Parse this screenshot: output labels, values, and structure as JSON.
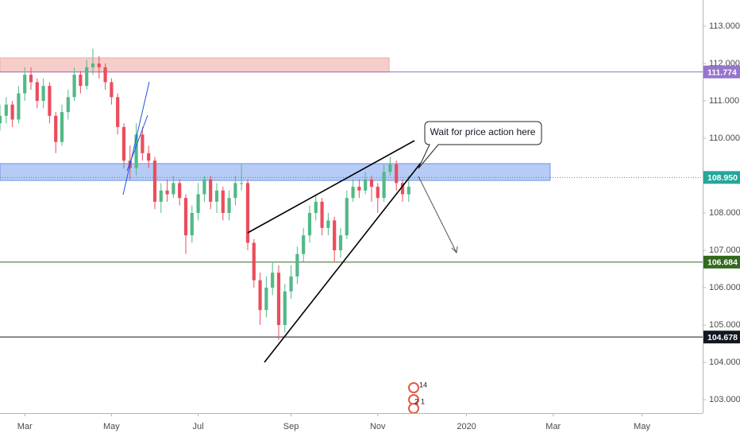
{
  "chart_data": {
    "type": "candlestick",
    "up_color": "#53b987",
    "down_color": "#eb4d5c",
    "x": [
      0,
      3,
      6,
      9,
      12,
      15,
      18,
      21,
      24,
      27,
      30,
      33,
      36,
      39,
      42,
      45,
      48,
      51,
      54,
      57,
      60,
      63,
      66,
      69,
      72,
      75,
      78,
      81,
      84,
      87,
      90,
      93,
      96,
      99,
      102,
      105,
      108,
      111,
      114,
      117,
      120,
      123,
      126,
      129,
      132,
      135,
      138,
      141,
      144,
      147,
      150,
      153,
      156,
      159,
      162,
      165,
      168,
      171,
      174,
      177,
      180,
      183,
      186,
      189,
      192,
      195,
      198
    ],
    "open": [
      110.4,
      110.6,
      110.9,
      110.5,
      111.2,
      111.7,
      111.5,
      111.0,
      111.4,
      110.6,
      109.9,
      110.7,
      111.1,
      111.7,
      111.4,
      111.9,
      112.0,
      111.9,
      111.5,
      111.1,
      110.3,
      109.4,
      109.2,
      110.1,
      109.6,
      109.4,
      108.3,
      108.6,
      108.5,
      108.8,
      108.4,
      107.4,
      108.0,
      108.5,
      108.9,
      108.3,
      108.6,
      108.0,
      108.4,
      108.8,
      108.8,
      107.2,
      106.2,
      105.4,
      106.0,
      106.4,
      105.0,
      105.9,
      106.3,
      106.9,
      107.4,
      108.0,
      108.3,
      107.6,
      107.8,
      107.0,
      107.4,
      108.4,
      108.7,
      108.6,
      108.9,
      108.7,
      108.4,
      109.1,
      109.3,
      108.8,
      108.5
    ],
    "high": [
      110.9,
      111.1,
      111.0,
      111.4,
      111.9,
      111.9,
      111.6,
      111.6,
      111.5,
      110.7,
      110.9,
      111.3,
      111.9,
      111.8,
      112.1,
      112.4,
      112.2,
      112.0,
      111.6,
      111.2,
      110.4,
      109.8,
      110.4,
      110.3,
      109.8,
      109.5,
      108.8,
      108.9,
      109.0,
      108.9,
      108.5,
      108.2,
      108.8,
      109.0,
      109.0,
      108.8,
      108.7,
      108.6,
      109.0,
      109.3,
      108.9,
      107.3,
      106.4,
      106.3,
      106.7,
      106.6,
      106.1,
      106.6,
      107.1,
      107.6,
      108.2,
      108.5,
      108.4,
      108.0,
      107.9,
      107.6,
      108.6,
      108.9,
      108.9,
      109.1,
      109.0,
      108.8,
      109.3,
      109.5,
      109.4,
      108.9,
      109.0
    ],
    "low": [
      110.2,
      110.4,
      110.3,
      110.4,
      111.0,
      111.3,
      110.8,
      110.8,
      110.4,
      109.6,
      109.8,
      110.5,
      111.0,
      111.2,
      111.3,
      111.7,
      111.6,
      111.3,
      110.9,
      110.1,
      109.2,
      108.9,
      109.0,
      109.4,
      109.2,
      108.1,
      108.0,
      108.3,
      108.4,
      108.2,
      106.9,
      107.2,
      107.8,
      108.3,
      108.1,
      108.0,
      107.8,
      107.8,
      108.2,
      108.6,
      107.0,
      106.0,
      105.0,
      105.2,
      105.8,
      104.6,
      104.8,
      105.7,
      106.1,
      106.7,
      107.2,
      107.8,
      107.4,
      107.4,
      106.7,
      106.8,
      107.3,
      108.3,
      108.4,
      108.5,
      108.3,
      108.0,
      108.3,
      109.0,
      108.6,
      108.3,
      108.3
    ],
    "close": [
      110.6,
      110.9,
      110.5,
      111.2,
      111.7,
      111.5,
      111.0,
      111.4,
      110.6,
      109.9,
      110.7,
      111.1,
      111.7,
      111.4,
      111.9,
      112.0,
      111.9,
      111.5,
      111.1,
      110.3,
      109.4,
      109.2,
      110.1,
      109.6,
      109.4,
      108.3,
      108.6,
      108.5,
      108.8,
      108.4,
      107.4,
      108.0,
      108.5,
      108.9,
      108.3,
      108.6,
      108.0,
      108.4,
      108.8,
      108.8,
      107.2,
      106.2,
      105.4,
      106.0,
      106.4,
      105.0,
      105.9,
      106.3,
      106.9,
      107.4,
      108.0,
      108.3,
      107.6,
      107.8,
      107.0,
      107.4,
      108.4,
      108.7,
      108.6,
      108.9,
      108.7,
      108.4,
      109.1,
      109.3,
      108.8,
      108.5,
      108.7
    ],
    "xlim": [
      0,
      340.4
    ],
    "xticks": [
      {
        "value": 12,
        "label": "Mar"
      },
      {
        "value": 54,
        "label": "May"
      },
      {
        "value": 96,
        "label": "Jul"
      },
      {
        "value": 141,
        "label": "Sep"
      },
      {
        "value": 183,
        "label": "Nov"
      },
      {
        "value": 226,
        "label": "2020"
      },
      {
        "value": 268,
        "label": "Mar"
      },
      {
        "value": 311,
        "label": "May"
      }
    ],
    "ylim": [
      102.64,
      113.7
    ],
    "yticks": [
      {
        "value": 103,
        "label": "103.000"
      },
      {
        "value": 104,
        "label": "104.000"
      },
      {
        "value": 105,
        "label": "105.000"
      },
      {
        "value": 106,
        "label": "106.000"
      },
      {
        "value": 107,
        "label": "107.000"
      },
      {
        "value": 108,
        "label": "108.000"
      },
      {
        "value": 109,
        "label": "109.000"
      },
      {
        "value": 110,
        "label": "110.000"
      },
      {
        "value": 111,
        "label": "111.000"
      },
      {
        "value": 112,
        "label": "112.000"
      },
      {
        "value": 113,
        "label": "113.000"
      }
    ],
    "levels": [
      {
        "value": 111.774,
        "color": "#9575cd",
        "style": "solid"
      },
      {
        "value": 108.95,
        "label": "108.950",
        "color": "#26a69a",
        "style": "dotted"
      },
      {
        "value": 106.684,
        "color": "#33691e",
        "style": "solid"
      },
      {
        "value": 104.678,
        "color": "#131722",
        "style": "solid"
      }
    ],
    "zones": [
      {
        "from": 111.77,
        "to": 112.15,
        "end": 188.5,
        "color": "#f3c6c2",
        "border": "#f0a9a3"
      },
      {
        "from": 108.87,
        "to": 109.32,
        "end": 266.5,
        "color": "#a9c3f5",
        "border": "#6f95e6"
      }
    ],
    "annotation": "Wait for price action here",
    "event_labels": [
      "14",
      "2",
      "1"
    ]
  }
}
